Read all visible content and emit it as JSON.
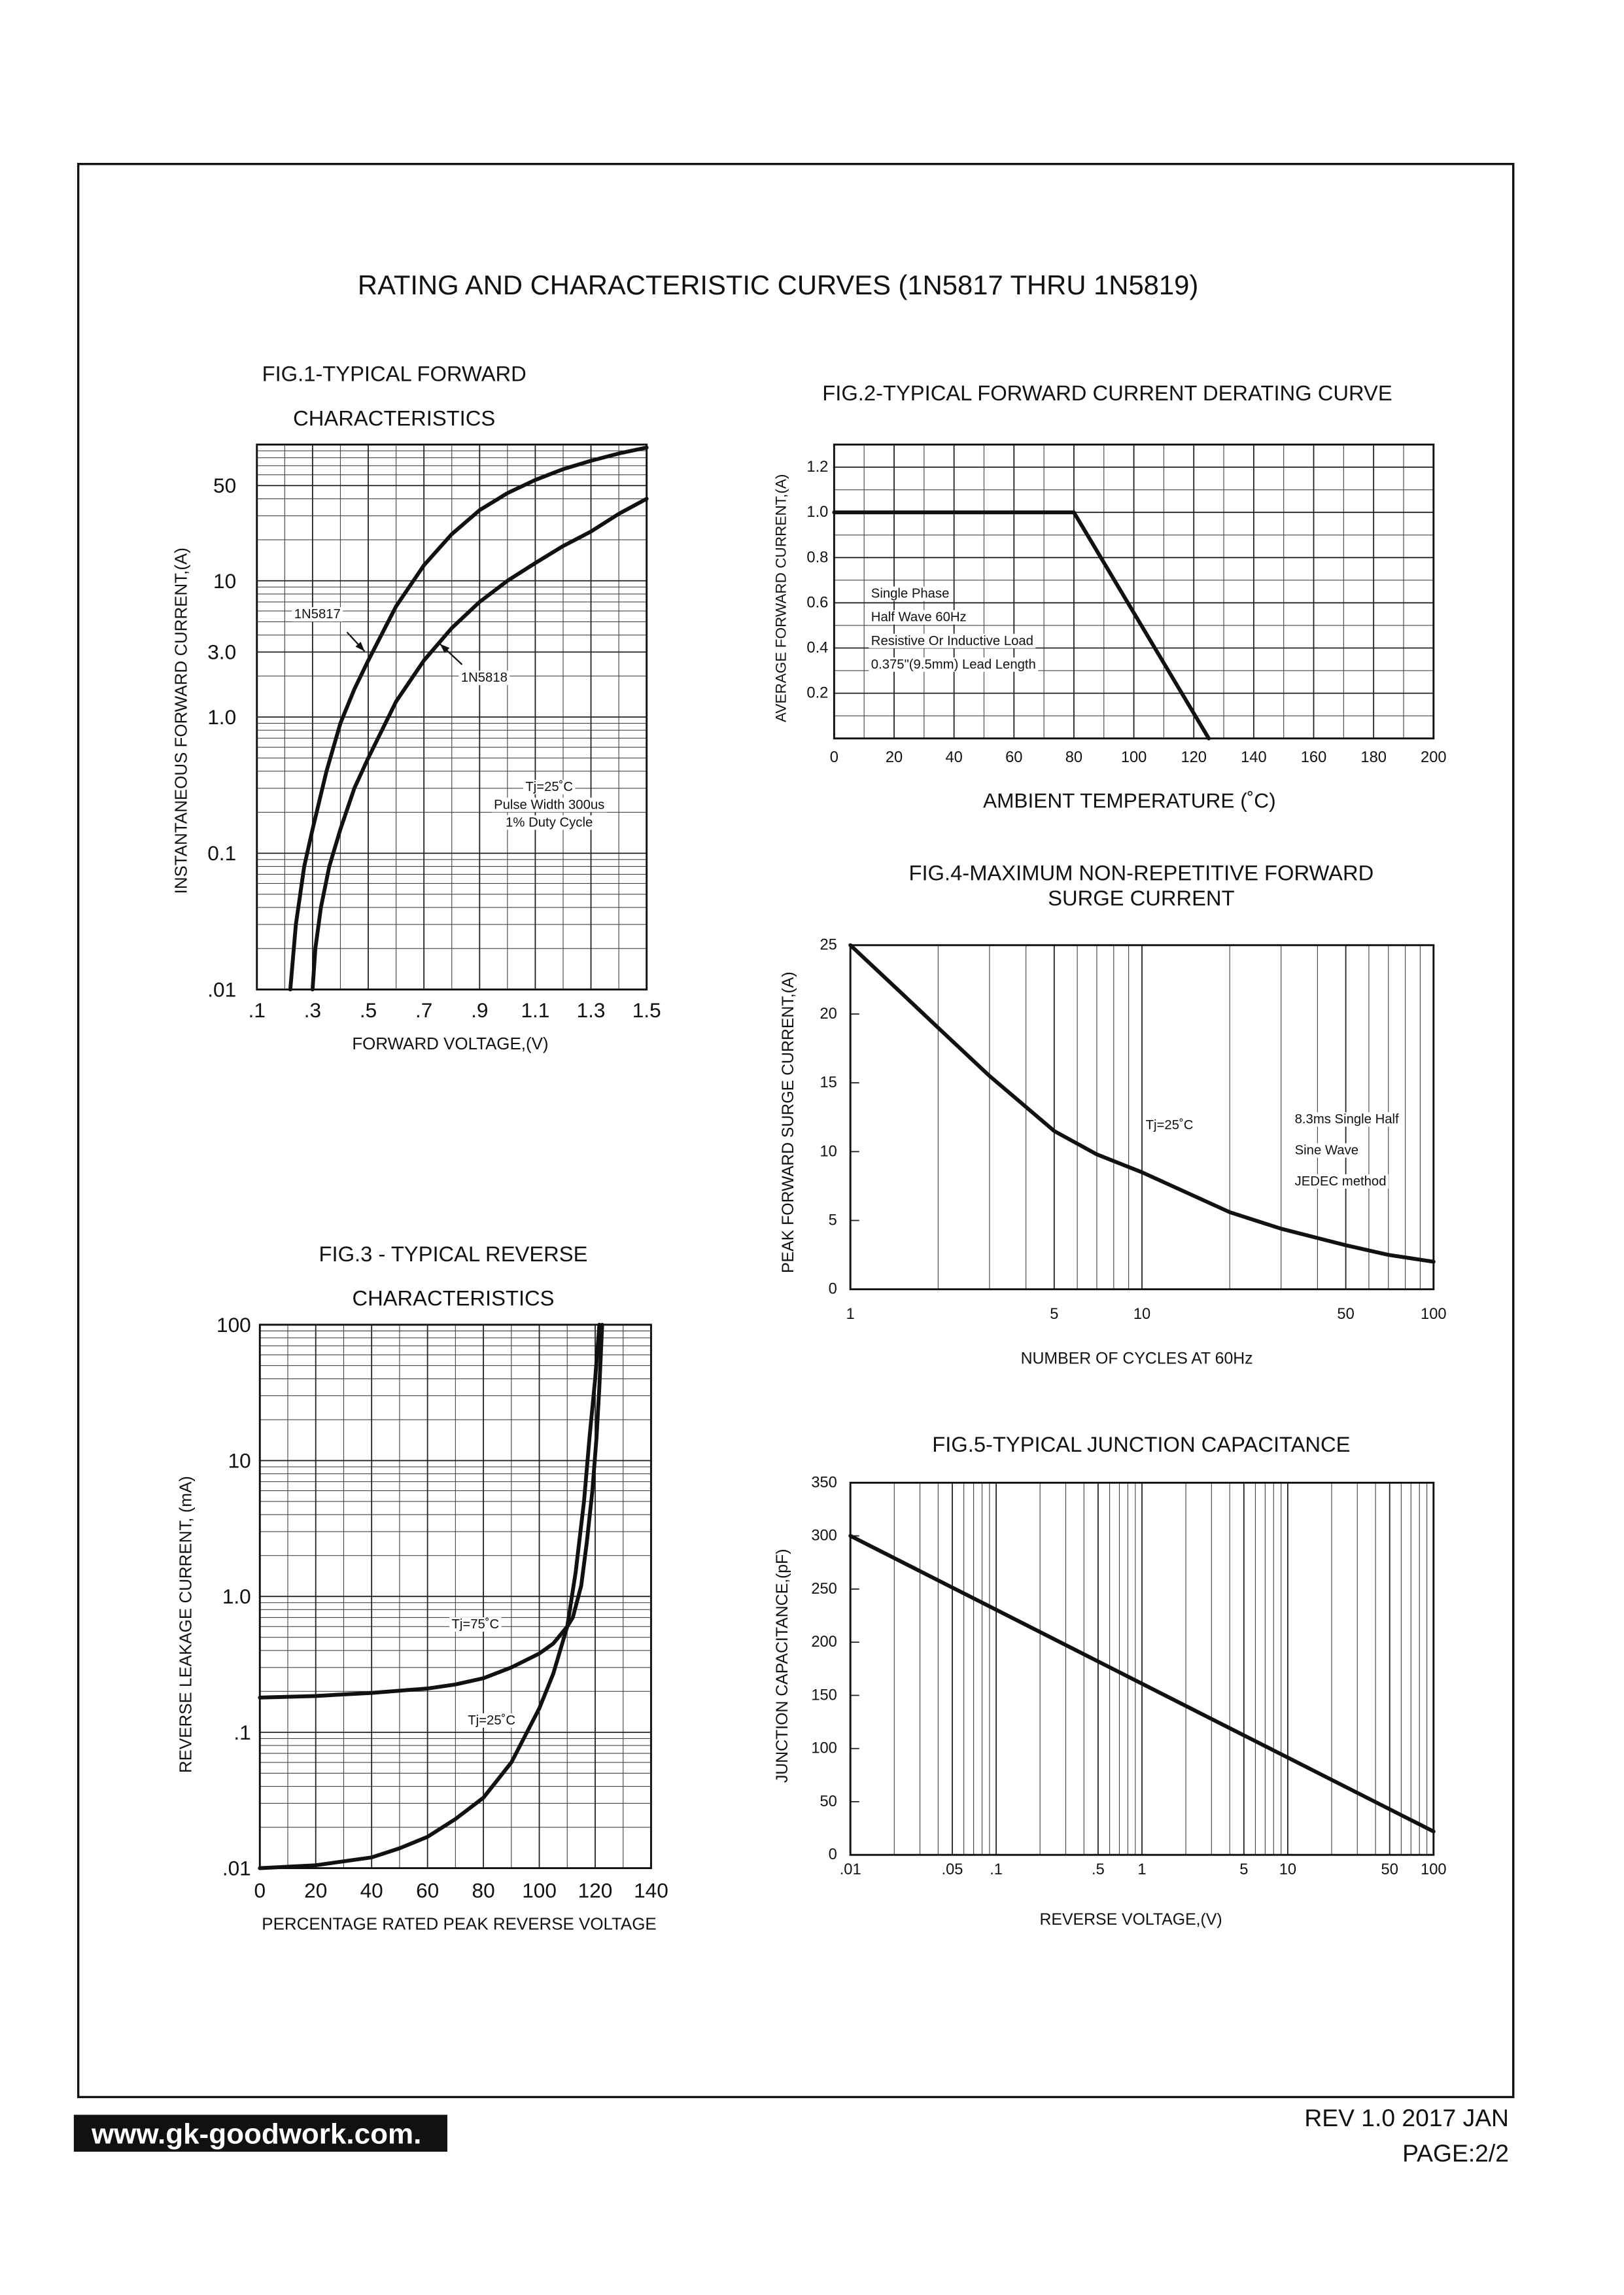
{
  "title": "RATING AND CHARACTERISTIC CURVES (1N5817 THRU 1N5819)",
  "website": "www.gk-goodwork.com.",
  "revision": "REV 1.0 2017 JAN",
  "page": "PAGE:2/2",
  "chart_data": [
    {
      "type": "line",
      "title": [
        "FIG.1-TYPICAL FORWARD",
        "CHARACTERISTICS"
      ],
      "xlabel": "FORWARD VOLTAGE,(V)",
      "ylabel": "INSTANTANEOUS FORWARD CURRENT,(A)",
      "xscale": "linear",
      "yscale": "log",
      "grid": "both",
      "xlim": [
        0.1,
        1.5
      ],
      "ylim": [
        0.01,
        100
      ],
      "xticks": [
        {
          "value": 0.1,
          "label": ".1"
        },
        {
          "value": 0.3,
          "label": ".3"
        },
        {
          "value": 0.5,
          "label": ".5"
        },
        {
          "value": 0.7,
          "label": ".7"
        },
        {
          "value": 0.9,
          "label": ".9"
        },
        1.1,
        1.3,
        1.5
      ],
      "yticks": [
        50,
        10,
        {
          "value": 3,
          "label": "3.0"
        },
        {
          "value": 1,
          "label": "1.0"
        },
        0.1,
        {
          "value": 0.01,
          "label": ".01"
        }
      ],
      "series": [
        {
          "name": "1N5817",
          "color": "#111111",
          "x": [
            0.22,
            0.24,
            0.27,
            0.3,
            0.35,
            0.4,
            0.45,
            0.5,
            0.6,
            0.7,
            0.8,
            0.9,
            1.0,
            1.1,
            1.2,
            1.3,
            1.4,
            1.5
          ],
          "values": [
            0.01,
            0.03,
            0.08,
            0.15,
            0.4,
            0.9,
            1.6,
            2.6,
            6.5,
            13,
            22,
            33,
            44,
            55,
            66,
            76,
            86,
            95
          ]
        },
        {
          "name": "1N5818",
          "color": "#111111",
          "x": [
            0.3,
            0.31,
            0.33,
            0.36,
            0.4,
            0.45,
            0.5,
            0.6,
            0.7,
            0.8,
            0.9,
            1.0,
            1.1,
            1.2,
            1.3,
            1.4,
            1.5
          ],
          "values": [
            0.01,
            0.02,
            0.04,
            0.08,
            0.15,
            0.3,
            0.5,
            1.3,
            2.6,
            4.5,
            7,
            10,
            13.5,
            18,
            23,
            31,
            40
          ]
        }
      ],
      "annotations": [
        [
          "Tj=25˚C",
          "Pulse Width 300us",
          "1% Duty Cycle"
        ]
      ]
    },
    {
      "type": "line",
      "title": [
        "FIG.2-TYPICAL FORWARD CURRENT DERATING CURVE"
      ],
      "xlabel": "AMBIENT TEMPERATURE (˚C)",
      "ylabel": "AVERAGE FORWARD CURRENT,(A)",
      "xscale": "linear",
      "yscale": "linear",
      "grid": "both",
      "xlim": [
        0,
        200
      ],
      "ylim": [
        0,
        1.3
      ],
      "xticks": [
        0,
        20,
        40,
        60,
        80,
        100,
        120,
        140,
        160,
        180,
        200
      ],
      "yticks": [
        0.2,
        0.4,
        0.6,
        0.8,
        {
          "value": 1,
          "label": "1.0"
        },
        1.2
      ],
      "series": [
        {
          "color": "#111111",
          "x": [
            0,
            80,
            125
          ],
          "values": [
            1,
            1,
            0
          ]
        }
      ],
      "annotations": [
        [
          "Single Phase",
          "Half Wave 60Hz",
          "Resistive Or Inductive Load",
          "0.375\"(9.5mm) Lead Length"
        ]
      ]
    },
    {
      "type": "line",
      "title": [
        "FIG.3 - TYPICAL REVERSE",
        "CHARACTERISTICS"
      ],
      "xlabel": "PERCENTAGE RATED PEAK REVERSE VOLTAGE",
      "ylabel": "REVERSE LEAKAGE CURRENT, (mA)",
      "xscale": "linear",
      "yscale": "log",
      "grid": "both",
      "xlim": [
        0,
        140
      ],
      "ylim": [
        0.01,
        100
      ],
      "xticks": [
        0,
        20,
        40,
        60,
        80,
        100,
        120,
        140
      ],
      "yticks": [
        100,
        10,
        {
          "value": 1,
          "label": "1.0"
        },
        {
          "value": 0.1,
          "label": ".1"
        },
        {
          "value": 0.01,
          "label": ".01"
        }
      ],
      "series": [
        {
          "name": "Tj=75˚C",
          "color": "#111111",
          "x": [
            0,
            20,
            40,
            60,
            70,
            80,
            90,
            100,
            105,
            110,
            112,
            115,
            117,
            119,
            120.5,
            121.5,
            122.5
          ],
          "values": [
            0.18,
            0.185,
            0.195,
            0.21,
            0.225,
            0.25,
            0.3,
            0.38,
            0.45,
            0.6,
            0.7,
            1.2,
            2.5,
            6,
            15,
            35,
            100
          ]
        },
        {
          "name": "Tj=25˚C",
          "color": "#111111",
          "x": [
            0,
            20,
            40,
            50,
            60,
            70,
            80,
            90,
            100,
            105,
            110,
            113,
            116,
            118,
            120,
            121.5
          ],
          "values": [
            0.01,
            0.0105,
            0.012,
            0.014,
            0.017,
            0.023,
            0.033,
            0.06,
            0.15,
            0.27,
            0.6,
            1.5,
            5,
            15,
            40,
            100
          ]
        }
      ]
    },
    {
      "type": "line",
      "title": [
        "FIG.4-MAXIMUM NON-REPETITIVE FORWARD",
        "SURGE CURRENT"
      ],
      "xlabel": "NUMBER OF CYCLES AT 60Hz",
      "ylabel": "PEAK FORWARD SURGE CURRENT,(A)",
      "xscale": "log",
      "yscale": "linear",
      "grid": "x",
      "xlim": [
        1,
        100
      ],
      "ylim": [
        0,
        25
      ],
      "xticks": [
        1,
        5,
        10,
        50,
        100
      ],
      "yticks": [
        0,
        5,
        10,
        15,
        20,
        25
      ],
      "series": [
        {
          "color": "#111111",
          "x": [
            1,
            1.5,
            2,
            3,
            5,
            7,
            10,
            20,
            30,
            50,
            70,
            100
          ],
          "values": [
            25,
            21.5,
            19,
            15.5,
            11.5,
            9.8,
            8.5,
            5.6,
            4.4,
            3.2,
            2.5,
            2
          ]
        }
      ],
      "annotations": [
        [
          "Tj=25˚C"
        ],
        [
          "8.3ms Single Half",
          "Sine Wave",
          "JEDEC method"
        ]
      ]
    },
    {
      "type": "line",
      "title": [
        "FIG.5-TYPICAL JUNCTION CAPACITANCE"
      ],
      "xlabel": "REVERSE VOLTAGE,(V)",
      "ylabel": "JUNCTION CAPACITANCE,(pF)",
      "xscale": "log",
      "yscale": "linear",
      "grid": "x",
      "xlim": [
        0.01,
        100
      ],
      "ylim": [
        0,
        350
      ],
      "xticks": [
        {
          "value": 0.01,
          "label": ".01"
        },
        {
          "value": 0.05,
          "label": ".05"
        },
        {
          "value": 0.1,
          "label": ".1"
        },
        {
          "value": 0.5,
          "label": ".5"
        },
        1,
        5,
        10,
        50,
        100
      ],
      "yticks": [
        0,
        50,
        100,
        150,
        200,
        250,
        300,
        350
      ],
      "series": [
        {
          "color": "#111111",
          "x": [
            0.01,
            100
          ],
          "values": [
            300,
            22
          ]
        }
      ]
    }
  ]
}
